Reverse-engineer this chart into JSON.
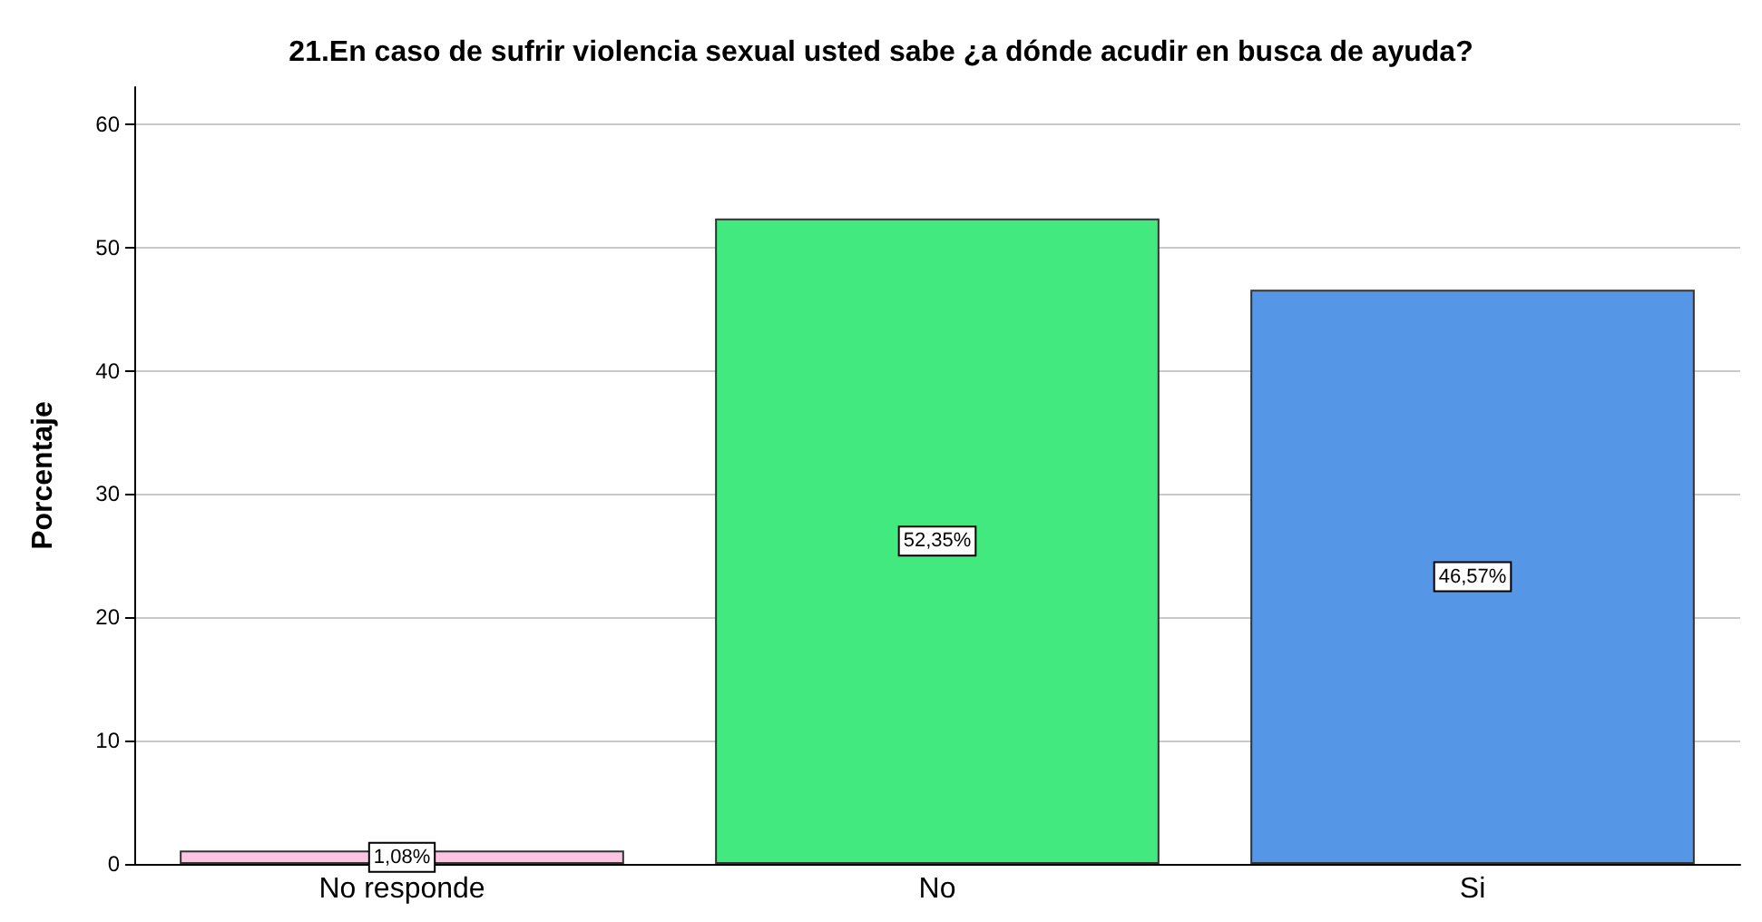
{
  "chart_data": {
    "type": "bar",
    "title": "21.En caso de sufrir violencia sexual usted sabe ¿a dónde acudir en busca de ayuda?",
    "ylabel": "Porcentaje",
    "categories": [
      "No responde",
      "No",
      "Si"
    ],
    "values": [
      1.08,
      52.35,
      46.57
    ],
    "colors": [
      "#ffc4e2",
      "#41e97e",
      "#5596e6"
    ],
    "value_labels": [
      "1,08%",
      "52,35%",
      "46,57%"
    ],
    "ylim": [
      0,
      63
    ],
    "yticks": [
      0,
      10,
      20,
      30,
      40,
      50,
      60
    ],
    "grid": "y"
  }
}
